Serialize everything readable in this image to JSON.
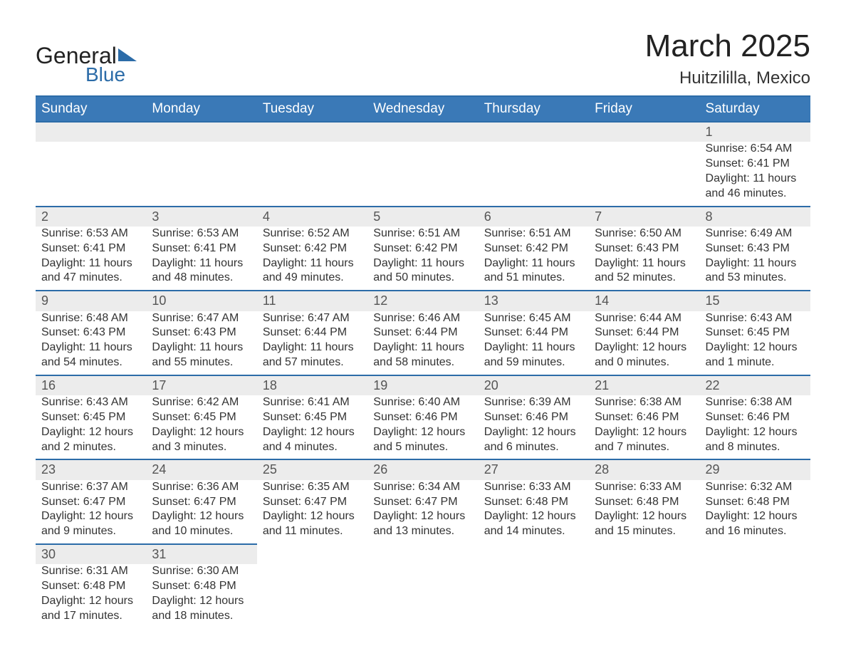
{
  "brand": {
    "name1": "General",
    "name2": "Blue",
    "accent_color": "#2c6ca8"
  },
  "title": {
    "month": "March 2025",
    "location": "Huitzililla, Mexico"
  },
  "colors": {
    "header_bg": "#3a79b7",
    "header_text": "#ffffff",
    "row_divider": "#2c6ca8",
    "daynum_bg": "#ececec",
    "body_text": "#333333",
    "background": "#ffffff"
  },
  "typography": {
    "month_title_fontsize": 44,
    "location_fontsize": 24,
    "header_fontsize": 19,
    "daynum_fontsize": 18,
    "detail_fontsize": 16,
    "font_family": "Arial"
  },
  "layout": {
    "columns": 7,
    "weeks": 6
  },
  "weekdays": [
    "Sunday",
    "Monday",
    "Tuesday",
    "Wednesday",
    "Thursday",
    "Friday",
    "Saturday"
  ],
  "weeks": [
    [
      null,
      null,
      null,
      null,
      null,
      null,
      {
        "day": "1",
        "sunrise": "Sunrise: 6:54 AM",
        "sunset": "Sunset: 6:41 PM",
        "daylight1": "Daylight: 11 hours",
        "daylight2": "and 46 minutes."
      }
    ],
    [
      {
        "day": "2",
        "sunrise": "Sunrise: 6:53 AM",
        "sunset": "Sunset: 6:41 PM",
        "daylight1": "Daylight: 11 hours",
        "daylight2": "and 47 minutes."
      },
      {
        "day": "3",
        "sunrise": "Sunrise: 6:53 AM",
        "sunset": "Sunset: 6:41 PM",
        "daylight1": "Daylight: 11 hours",
        "daylight2": "and 48 minutes."
      },
      {
        "day": "4",
        "sunrise": "Sunrise: 6:52 AM",
        "sunset": "Sunset: 6:42 PM",
        "daylight1": "Daylight: 11 hours",
        "daylight2": "and 49 minutes."
      },
      {
        "day": "5",
        "sunrise": "Sunrise: 6:51 AM",
        "sunset": "Sunset: 6:42 PM",
        "daylight1": "Daylight: 11 hours",
        "daylight2": "and 50 minutes."
      },
      {
        "day": "6",
        "sunrise": "Sunrise: 6:51 AM",
        "sunset": "Sunset: 6:42 PM",
        "daylight1": "Daylight: 11 hours",
        "daylight2": "and 51 minutes."
      },
      {
        "day": "7",
        "sunrise": "Sunrise: 6:50 AM",
        "sunset": "Sunset: 6:43 PM",
        "daylight1": "Daylight: 11 hours",
        "daylight2": "and 52 minutes."
      },
      {
        "day": "8",
        "sunrise": "Sunrise: 6:49 AM",
        "sunset": "Sunset: 6:43 PM",
        "daylight1": "Daylight: 11 hours",
        "daylight2": "and 53 minutes."
      }
    ],
    [
      {
        "day": "9",
        "sunrise": "Sunrise: 6:48 AM",
        "sunset": "Sunset: 6:43 PM",
        "daylight1": "Daylight: 11 hours",
        "daylight2": "and 54 minutes."
      },
      {
        "day": "10",
        "sunrise": "Sunrise: 6:47 AM",
        "sunset": "Sunset: 6:43 PM",
        "daylight1": "Daylight: 11 hours",
        "daylight2": "and 55 minutes."
      },
      {
        "day": "11",
        "sunrise": "Sunrise: 6:47 AM",
        "sunset": "Sunset: 6:44 PM",
        "daylight1": "Daylight: 11 hours",
        "daylight2": "and 57 minutes."
      },
      {
        "day": "12",
        "sunrise": "Sunrise: 6:46 AM",
        "sunset": "Sunset: 6:44 PM",
        "daylight1": "Daylight: 11 hours",
        "daylight2": "and 58 minutes."
      },
      {
        "day": "13",
        "sunrise": "Sunrise: 6:45 AM",
        "sunset": "Sunset: 6:44 PM",
        "daylight1": "Daylight: 11 hours",
        "daylight2": "and 59 minutes."
      },
      {
        "day": "14",
        "sunrise": "Sunrise: 6:44 AM",
        "sunset": "Sunset: 6:44 PM",
        "daylight1": "Daylight: 12 hours",
        "daylight2": "and 0 minutes."
      },
      {
        "day": "15",
        "sunrise": "Sunrise: 6:43 AM",
        "sunset": "Sunset: 6:45 PM",
        "daylight1": "Daylight: 12 hours",
        "daylight2": "and 1 minute."
      }
    ],
    [
      {
        "day": "16",
        "sunrise": "Sunrise: 6:43 AM",
        "sunset": "Sunset: 6:45 PM",
        "daylight1": "Daylight: 12 hours",
        "daylight2": "and 2 minutes."
      },
      {
        "day": "17",
        "sunrise": "Sunrise: 6:42 AM",
        "sunset": "Sunset: 6:45 PM",
        "daylight1": "Daylight: 12 hours",
        "daylight2": "and 3 minutes."
      },
      {
        "day": "18",
        "sunrise": "Sunrise: 6:41 AM",
        "sunset": "Sunset: 6:45 PM",
        "daylight1": "Daylight: 12 hours",
        "daylight2": "and 4 minutes."
      },
      {
        "day": "19",
        "sunrise": "Sunrise: 6:40 AM",
        "sunset": "Sunset: 6:46 PM",
        "daylight1": "Daylight: 12 hours",
        "daylight2": "and 5 minutes."
      },
      {
        "day": "20",
        "sunrise": "Sunrise: 6:39 AM",
        "sunset": "Sunset: 6:46 PM",
        "daylight1": "Daylight: 12 hours",
        "daylight2": "and 6 minutes."
      },
      {
        "day": "21",
        "sunrise": "Sunrise: 6:38 AM",
        "sunset": "Sunset: 6:46 PM",
        "daylight1": "Daylight: 12 hours",
        "daylight2": "and 7 minutes."
      },
      {
        "day": "22",
        "sunrise": "Sunrise: 6:38 AM",
        "sunset": "Sunset: 6:46 PM",
        "daylight1": "Daylight: 12 hours",
        "daylight2": "and 8 minutes."
      }
    ],
    [
      {
        "day": "23",
        "sunrise": "Sunrise: 6:37 AM",
        "sunset": "Sunset: 6:47 PM",
        "daylight1": "Daylight: 12 hours",
        "daylight2": "and 9 minutes."
      },
      {
        "day": "24",
        "sunrise": "Sunrise: 6:36 AM",
        "sunset": "Sunset: 6:47 PM",
        "daylight1": "Daylight: 12 hours",
        "daylight2": "and 10 minutes."
      },
      {
        "day": "25",
        "sunrise": "Sunrise: 6:35 AM",
        "sunset": "Sunset: 6:47 PM",
        "daylight1": "Daylight: 12 hours",
        "daylight2": "and 11 minutes."
      },
      {
        "day": "26",
        "sunrise": "Sunrise: 6:34 AM",
        "sunset": "Sunset: 6:47 PM",
        "daylight1": "Daylight: 12 hours",
        "daylight2": "and 13 minutes."
      },
      {
        "day": "27",
        "sunrise": "Sunrise: 6:33 AM",
        "sunset": "Sunset: 6:48 PM",
        "daylight1": "Daylight: 12 hours",
        "daylight2": "and 14 minutes."
      },
      {
        "day": "28",
        "sunrise": "Sunrise: 6:33 AM",
        "sunset": "Sunset: 6:48 PM",
        "daylight1": "Daylight: 12 hours",
        "daylight2": "and 15 minutes."
      },
      {
        "day": "29",
        "sunrise": "Sunrise: 6:32 AM",
        "sunset": "Sunset: 6:48 PM",
        "daylight1": "Daylight: 12 hours",
        "daylight2": "and 16 minutes."
      }
    ],
    [
      {
        "day": "30",
        "sunrise": "Sunrise: 6:31 AM",
        "sunset": "Sunset: 6:48 PM",
        "daylight1": "Daylight: 12 hours",
        "daylight2": "and 17 minutes."
      },
      {
        "day": "31",
        "sunrise": "Sunrise: 6:30 AM",
        "sunset": "Sunset: 6:48 PM",
        "daylight1": "Daylight: 12 hours",
        "daylight2": "and 18 minutes."
      },
      null,
      null,
      null,
      null,
      null
    ]
  ]
}
